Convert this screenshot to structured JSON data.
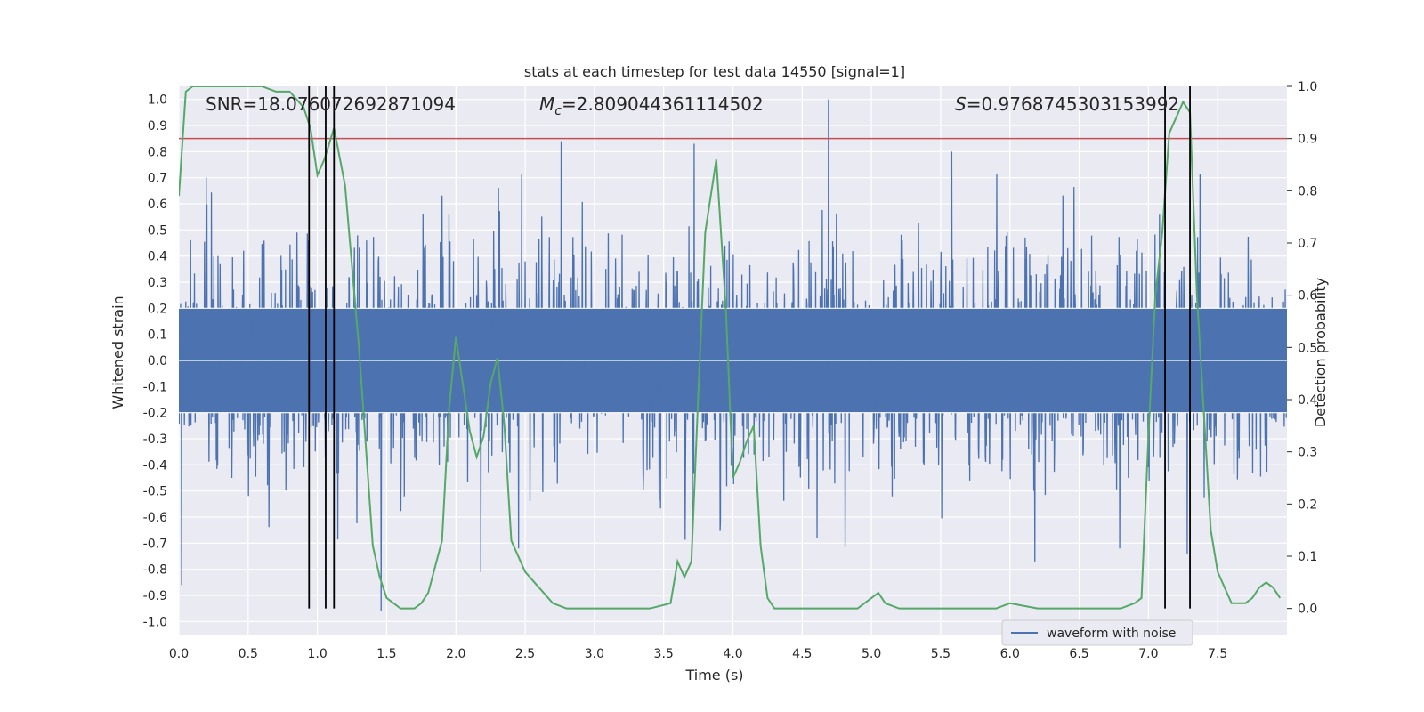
{
  "chart_data": {
    "type": "line",
    "title": "stats at each timestep for test data 14550 [signal=1]",
    "xlabel": "Time (s)",
    "ylabel": "Whitened strain",
    "y2label": "Detection probability",
    "xlim": [
      0.0,
      8.0
    ],
    "ylim": [
      -1.05,
      1.05
    ],
    "y2lim": [
      -0.05,
      1.0
    ],
    "xticks": [
      "0.0",
      "0.5",
      "1.0",
      "1.5",
      "2.0",
      "2.5",
      "3.0",
      "3.5",
      "4.0",
      "4.5",
      "5.0",
      "5.5",
      "6.0",
      "6.5",
      "7.0",
      "7.5"
    ],
    "yticks": [
      "-1.0",
      "-0.9",
      "-0.8",
      "-0.7",
      "-0.6",
      "-0.5",
      "-0.4",
      "-0.3",
      "-0.2",
      "-0.1",
      "0.0",
      "0.1",
      "0.2",
      "0.3",
      "0.4",
      "0.5",
      "0.6",
      "0.7",
      "0.8",
      "0.9",
      "1.0"
    ],
    "y2ticks": [
      "0.0",
      "0.1",
      "0.2",
      "0.3",
      "0.4",
      "0.5",
      "0.6",
      "0.7",
      "0.8",
      "0.9",
      "1.0"
    ],
    "grid": true,
    "legend": {
      "placement": "lower-right",
      "entries": [
        "waveform with noise"
      ]
    },
    "annotations": {
      "snr": "SNR=18.076072692871094",
      "mc_symbol": "M",
      "mc_sub": "c",
      "mc_value": "=2.809044361114502",
      "s_symbol": "S",
      "s_value": "=0.9768745303153992"
    },
    "threshold": {
      "value": 0.9,
      "axis": "right",
      "color": "#c44e52"
    },
    "vlines": [
      0.94,
      1.06,
      1.12,
      7.12,
      7.3
    ],
    "colors": {
      "waveform": "#4c72b0",
      "probability": "#55a868",
      "vlines": "#000000",
      "background": "#eaeaf2",
      "grid": "#ffffff"
    },
    "waveform_summary": {
      "name": "waveform with noise",
      "duration_s": 8.0,
      "core_amplitude": 0.2,
      "typical_peak": 0.4,
      "spikes": [
        {
          "t": 2.76,
          "y": 0.84
        },
        {
          "t": 3.72,
          "y": 0.83
        },
        {
          "t": 4.69,
          "y": 1.0
        },
        {
          "t": 5.58,
          "y": 0.8
        },
        {
          "t": 1.46,
          "y": -0.96
        },
        {
          "t": 0.02,
          "y": -0.86
        },
        {
          "t": 2.18,
          "y": -0.81
        },
        {
          "t": 6.18,
          "y": -0.77
        },
        {
          "t": 7.28,
          "y": -0.74
        }
      ]
    },
    "series": [
      {
        "name": "",
        "axis": "right",
        "x": [
          0.0,
          0.05,
          0.1,
          0.2,
          0.3,
          0.4,
          0.5,
          0.6,
          0.7,
          0.8,
          0.9,
          0.95,
          1.0,
          1.05,
          1.12,
          1.2,
          1.3,
          1.4,
          1.45,
          1.5,
          1.6,
          1.7,
          1.75,
          1.8,
          1.9,
          1.95,
          2.0,
          2.05,
          2.1,
          2.15,
          2.2,
          2.25,
          2.3,
          2.35,
          2.4,
          2.5,
          2.6,
          2.7,
          2.8,
          3.0,
          3.2,
          3.4,
          3.55,
          3.6,
          3.65,
          3.7,
          3.75,
          3.8,
          3.88,
          3.95,
          4.0,
          4.05,
          4.1,
          4.15,
          4.2,
          4.25,
          4.3,
          4.5,
          4.7,
          4.9,
          5.0,
          5.05,
          5.1,
          5.2,
          5.4,
          5.6,
          5.8,
          5.9,
          6.0,
          6.2,
          6.4,
          6.6,
          6.8,
          6.9,
          6.95,
          7.0,
          7.05,
          7.1,
          7.15,
          7.2,
          7.25,
          7.3,
          7.35,
          7.45,
          7.5,
          7.6,
          7.7,
          7.75,
          7.8,
          7.85,
          7.9,
          7.95
        ],
        "y": [
          0.79,
          0.99,
          1.0,
          1.0,
          1.0,
          1.0,
          1.0,
          1.0,
          0.99,
          0.99,
          0.96,
          0.92,
          0.83,
          0.86,
          0.92,
          0.81,
          0.5,
          0.12,
          0.06,
          0.02,
          0.0,
          0.0,
          0.01,
          0.03,
          0.13,
          0.38,
          0.52,
          0.43,
          0.34,
          0.29,
          0.33,
          0.43,
          0.48,
          0.35,
          0.13,
          0.07,
          0.04,
          0.01,
          0.0,
          0.0,
          0.0,
          0.0,
          0.01,
          0.09,
          0.06,
          0.09,
          0.41,
          0.72,
          0.86,
          0.57,
          0.25,
          0.28,
          0.32,
          0.35,
          0.12,
          0.02,
          0.0,
          0.0,
          0.0,
          0.0,
          0.02,
          0.03,
          0.01,
          0.0,
          0.0,
          0.0,
          0.0,
          0.0,
          0.01,
          0.0,
          0.0,
          0.0,
          0.0,
          0.01,
          0.02,
          0.33,
          0.6,
          0.72,
          0.91,
          0.94,
          0.97,
          0.95,
          0.6,
          0.15,
          0.07,
          0.01,
          0.01,
          0.02,
          0.04,
          0.05,
          0.04,
          0.02
        ]
      }
    ]
  }
}
